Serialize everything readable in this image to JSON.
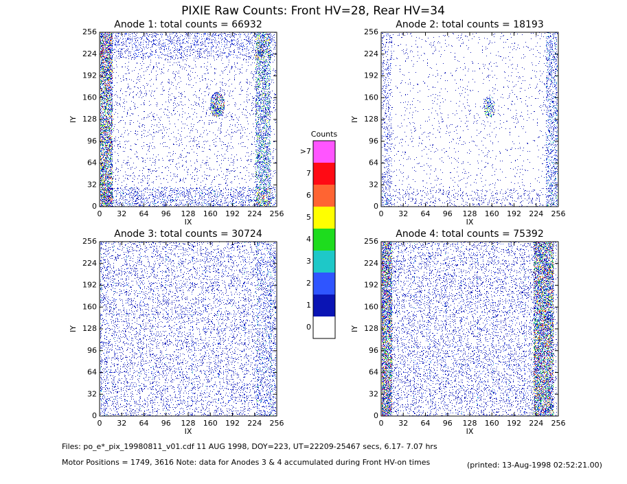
{
  "title": "PIXIE Raw Counts:  Front HV=28, Rear HV=34",
  "chart_data": [
    {
      "type": "heatmap",
      "title": "Anode 1: total counts = 66932",
      "xlabel": "IX",
      "ylabel": "IY",
      "xlim": [
        0,
        256
      ],
      "ylim": [
        0,
        256
      ],
      "xticks": [
        0,
        32,
        64,
        96,
        128,
        160,
        192,
        224,
        256
      ],
      "yticks": [
        0,
        32,
        64,
        96,
        128,
        160,
        192,
        224,
        256
      ]
    },
    {
      "type": "heatmap",
      "title": "Anode 2: total counts = 18193",
      "xlabel": "IX",
      "ylabel": "IY",
      "xlim": [
        0,
        256
      ],
      "ylim": [
        0,
        256
      ],
      "xticks": [
        0,
        32,
        64,
        96,
        128,
        160,
        192,
        224,
        256
      ],
      "yticks": [
        0,
        32,
        64,
        96,
        128,
        160,
        192,
        224,
        256
      ]
    },
    {
      "type": "heatmap",
      "title": "Anode 3: total counts = 30724",
      "xlabel": "IX",
      "ylabel": "IY",
      "xlim": [
        0,
        256
      ],
      "ylim": [
        0,
        256
      ],
      "xticks": [
        0,
        32,
        64,
        96,
        128,
        160,
        192,
        224,
        256
      ],
      "yticks": [
        0,
        32,
        64,
        96,
        128,
        160,
        192,
        224,
        256
      ]
    },
    {
      "type": "heatmap",
      "title": "Anode 4: total counts = 75392",
      "xlabel": "IX",
      "ylabel": "IY",
      "xlim": [
        0,
        256
      ],
      "ylim": [
        0,
        256
      ],
      "xticks": [
        0,
        32,
        64,
        96,
        128,
        160,
        192,
        224,
        256
      ],
      "yticks": [
        0,
        32,
        64,
        96,
        128,
        160,
        192,
        224,
        256
      ]
    },
    {
      "type": "colorbar",
      "title": "Counts",
      "categories": [
        "0",
        "1",
        "2",
        "3",
        "4",
        "5",
        "6",
        "7",
        ">7"
      ],
      "colors": [
        "#ffffff",
        "#0a14b4",
        "#2f55ff",
        "#1ec8c8",
        "#1edc1e",
        "#ffff00",
        "#ff6432",
        "#ff0a14",
        "#ff55ff"
      ]
    }
  ],
  "footer": {
    "files": "Files: po_e*_pix_19980811_v01.cdf     11 AUG 1998, DOY=223, UT=22209-25467 secs,  6.17- 7.07 hrs",
    "motor": "Motor Positions = 1749, 3616   Note: data for Anodes 3 & 4 accumulated during Front HV-on times",
    "printed": "(printed: 13-Aug-1998 02:52:21.00)"
  }
}
